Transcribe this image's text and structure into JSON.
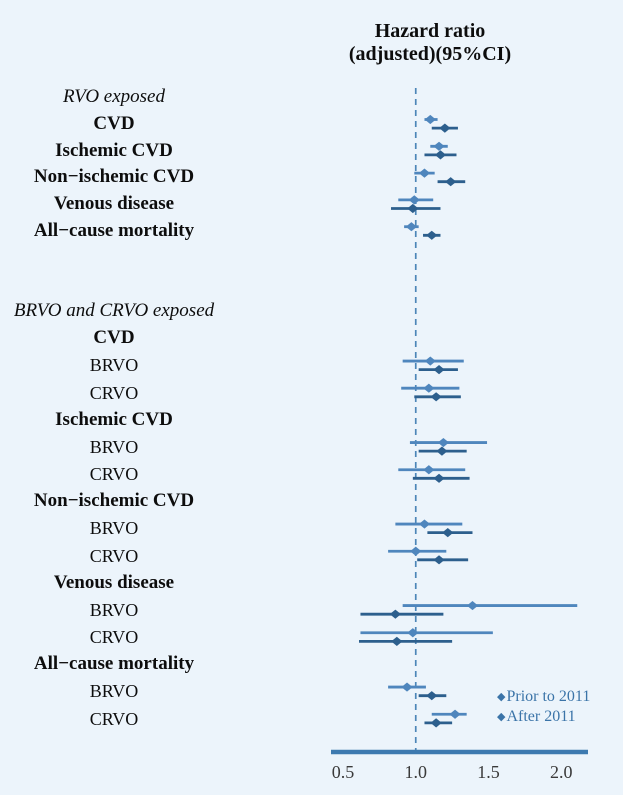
{
  "title": {
    "line1": "Hazard ratio",
    "line2": "(adjusted)(95%CI)"
  },
  "legend": {
    "prior": {
      "label": "Prior to 2011"
    },
    "after": {
      "label": "After 2011"
    }
  },
  "colors": {
    "background": "#ecf4fb",
    "prior_series": "#4f86bd",
    "after_series": "#2d5f8d",
    "axis_line": "#3d7ab0",
    "reference_line": "#4c86b8",
    "legend_text": "#3b74a8",
    "tick_text": "#3a3a3a",
    "label_text": "#0d0d0d"
  },
  "chart_data": {
    "type": "forest",
    "title": "Hazard ratio (adjusted)(95%CI)",
    "x_axis": {
      "ticks": [
        "0.5",
        "1.0",
        "1.5",
        "2.0"
      ],
      "tick_values": [
        0.5,
        1.0,
        1.5,
        2.0
      ],
      "range": [
        0.42,
        2.18
      ],
      "reference_line": 1.0
    },
    "series_names": [
      "Prior to 2011",
      "After 2011"
    ],
    "rows": [
      {
        "section": 1,
        "kind": "group",
        "label": "RVO exposed"
      },
      {
        "section": 1,
        "kind": "outcome",
        "label": "CVD",
        "prior": {
          "hr": 1.1,
          "ci": [
            1.06,
            1.15
          ]
        },
        "after": {
          "hr": 1.2,
          "ci": [
            1.11,
            1.29
          ]
        }
      },
      {
        "section": 1,
        "kind": "outcome",
        "label": "Ischemic CVD",
        "prior": {
          "hr": 1.16,
          "ci": [
            1.1,
            1.22
          ]
        },
        "after": {
          "hr": 1.17,
          "ci": [
            1.06,
            1.28
          ]
        }
      },
      {
        "section": 1,
        "kind": "outcome",
        "label": "Non−ischemic CVD",
        "prior": {
          "hr": 1.06,
          "ci": [
            0.99,
            1.13
          ]
        },
        "after": {
          "hr": 1.24,
          "ci": [
            1.15,
            1.34
          ]
        }
      },
      {
        "section": 1,
        "kind": "outcome",
        "label": "Venous disease",
        "prior": {
          "hr": 0.99,
          "ci": [
            0.88,
            1.12
          ]
        },
        "after": {
          "hr": 0.98,
          "ci": [
            0.83,
            1.17
          ]
        }
      },
      {
        "section": 1,
        "kind": "outcome",
        "label": "All−cause mortality",
        "prior": {
          "hr": 0.97,
          "ci": [
            0.92,
            1.02
          ]
        },
        "after": {
          "hr": 1.11,
          "ci": [
            1.05,
            1.17
          ]
        }
      },
      {
        "section": 2,
        "kind": "group",
        "label": "BRVO and CRVO exposed"
      },
      {
        "section": 2,
        "kind": "outcome",
        "label": "CVD"
      },
      {
        "section": 2,
        "kind": "sub",
        "label": "BRVO",
        "prior": {
          "hr": 1.1,
          "ci": [
            0.91,
            1.33
          ]
        },
        "after": {
          "hr": 1.16,
          "ci": [
            1.02,
            1.29
          ]
        }
      },
      {
        "section": 2,
        "kind": "sub",
        "label": "CRVO",
        "prior": {
          "hr": 1.09,
          "ci": [
            0.9,
            1.3
          ]
        },
        "after": {
          "hr": 1.14,
          "ci": [
            0.99,
            1.31
          ]
        }
      },
      {
        "section": 2,
        "kind": "outcome",
        "label": "Ischemic CVD"
      },
      {
        "section": 2,
        "kind": "sub",
        "label": "BRVO",
        "prior": {
          "hr": 1.19,
          "ci": [
            0.96,
            1.49
          ]
        },
        "after": {
          "hr": 1.18,
          "ci": [
            1.02,
            1.35
          ]
        }
      },
      {
        "section": 2,
        "kind": "sub",
        "label": "CRVO",
        "prior": {
          "hr": 1.09,
          "ci": [
            0.88,
            1.34
          ]
        },
        "after": {
          "hr": 1.16,
          "ci": [
            0.98,
            1.37
          ]
        }
      },
      {
        "section": 2,
        "kind": "outcome",
        "label": "Non−ischemic CVD"
      },
      {
        "section": 2,
        "kind": "sub",
        "label": "BRVO",
        "prior": {
          "hr": 1.06,
          "ci": [
            0.86,
            1.32
          ]
        },
        "after": {
          "hr": 1.22,
          "ci": [
            1.08,
            1.39
          ]
        }
      },
      {
        "section": 2,
        "kind": "sub",
        "label": "CRVO",
        "prior": {
          "hr": 1.0,
          "ci": [
            0.81,
            1.21
          ]
        },
        "after": {
          "hr": 1.16,
          "ci": [
            1.01,
            1.36
          ]
        }
      },
      {
        "section": 2,
        "kind": "outcome",
        "label": "Venous disease"
      },
      {
        "section": 2,
        "kind": "sub",
        "label": "BRVO",
        "prior": {
          "hr": 1.39,
          "ci": [
            0.91,
            2.11
          ]
        },
        "after": {
          "hr": 0.86,
          "ci": [
            0.62,
            1.19
          ]
        }
      },
      {
        "section": 2,
        "kind": "sub",
        "label": "CRVO",
        "prior": {
          "hr": 0.98,
          "ci": [
            0.62,
            1.53
          ]
        },
        "after": {
          "hr": 0.87,
          "ci": [
            0.61,
            1.25
          ]
        }
      },
      {
        "section": 2,
        "kind": "outcome",
        "label": "All−cause mortality"
      },
      {
        "section": 2,
        "kind": "sub",
        "label": "BRVO",
        "prior": {
          "hr": 0.94,
          "ci": [
            0.81,
            1.07
          ]
        },
        "after": {
          "hr": 1.11,
          "ci": [
            1.02,
            1.21
          ]
        }
      },
      {
        "section": 2,
        "kind": "sub",
        "label": "CRVO",
        "prior": {
          "hr": 1.27,
          "ci": [
            1.11,
            1.35
          ]
        },
        "after": {
          "hr": 1.14,
          "ci": [
            1.06,
            1.25
          ]
        }
      }
    ]
  }
}
